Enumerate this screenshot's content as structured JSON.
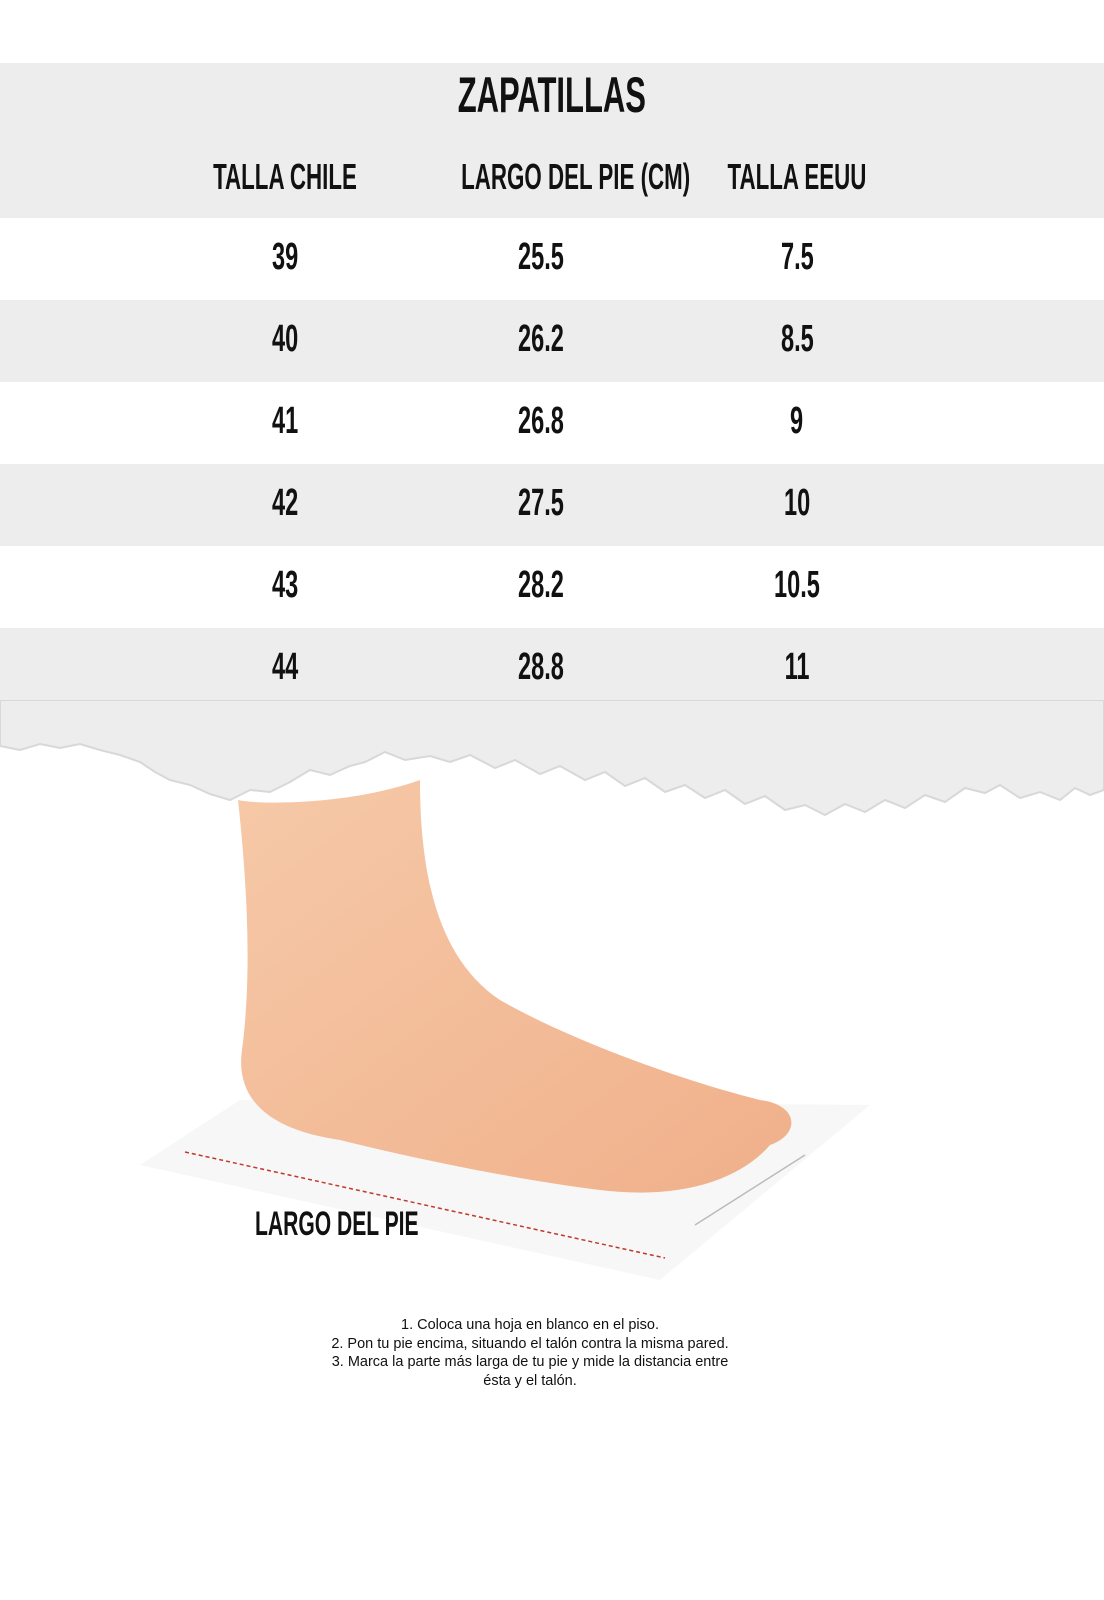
{
  "title": "ZAPATILLAS",
  "columns": [
    "TALLA CHILE",
    "LARGO DEL PIE (CM)",
    "TALLA EEUU"
  ],
  "rows": [
    [
      "39",
      "25.5",
      "7.5"
    ],
    [
      "40",
      "26.2",
      "8.5"
    ],
    [
      "41",
      "26.8",
      "9"
    ],
    [
      "42",
      "27.5",
      "10"
    ],
    [
      "43",
      "28.2",
      "10.5"
    ],
    [
      "44",
      "28.8",
      "11"
    ]
  ],
  "foot_label": "LARGO DEL PIE",
  "instructions": [
    "1. Coloca una hoja en blanco en el piso.",
    "2. Pon tu pie encima, situando el talón contra la misma pared.",
    "3. Marca la parte más larga de tu pie y mide la distancia entre",
    "ésta y el talón."
  ],
  "colors": {
    "band": "#ededed",
    "text": "#111111",
    "measure_line": "#c0392b"
  }
}
